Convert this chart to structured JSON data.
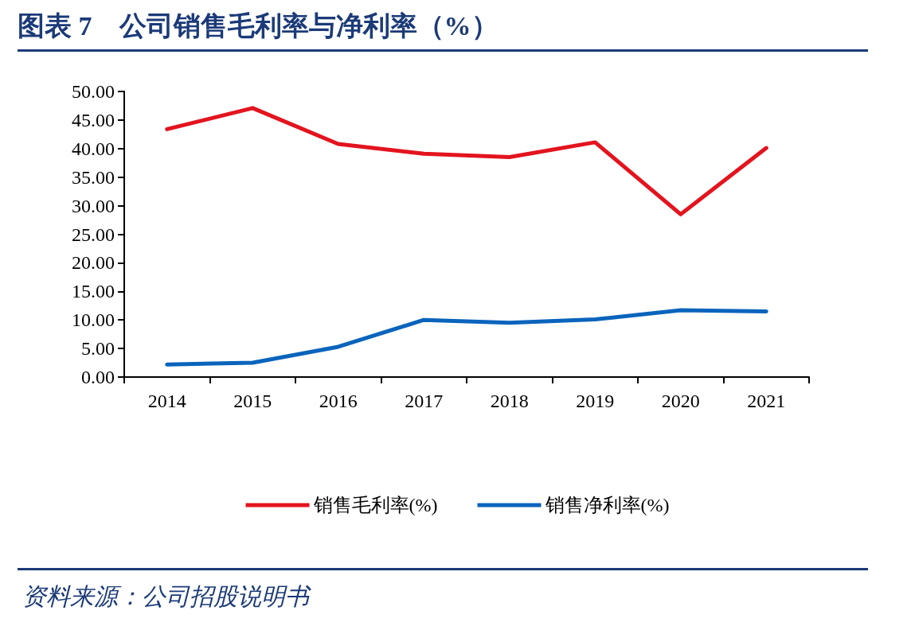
{
  "chart_data": {
    "type": "line",
    "title": "图表 7　公司销售毛利率与净利率（%）",
    "categories": [
      "2014",
      "2015",
      "2016",
      "2017",
      "2018",
      "2019",
      "2020",
      "2021"
    ],
    "series": [
      {
        "name": "销售毛利率(%)",
        "color": "#e3141e",
        "values": [
          43.4,
          47.1,
          40.8,
          39.1,
          38.5,
          41.1,
          28.5,
          40.1
        ]
      },
      {
        "name": "销售净利率(%)",
        "color": "#0a64bc",
        "values": [
          2.2,
          2.5,
          5.3,
          10.0,
          9.5,
          10.1,
          11.7,
          11.5
        ]
      }
    ],
    "ylim": [
      0,
      50
    ],
    "yticks": [
      {
        "value": 0,
        "label": "0.00"
      },
      {
        "value": 5,
        "label": "5.00"
      },
      {
        "value": 10,
        "label": "10.00"
      },
      {
        "value": 15,
        "label": "15.00"
      },
      {
        "value": 20,
        "label": "20.00"
      },
      {
        "value": 25,
        "label": "25.00"
      },
      {
        "value": 30,
        "label": "30.00"
      },
      {
        "value": 35,
        "label": "35.00"
      },
      {
        "value": 40,
        "label": "40.00"
      },
      {
        "value": 45,
        "label": "45.00"
      },
      {
        "value": 50,
        "label": "50.00"
      }
    ],
    "grid": false,
    "legend": "bottom",
    "marker": "none",
    "line_style": "solid",
    "annotations": [
      "资料来源：公司招股说明书"
    ]
  }
}
